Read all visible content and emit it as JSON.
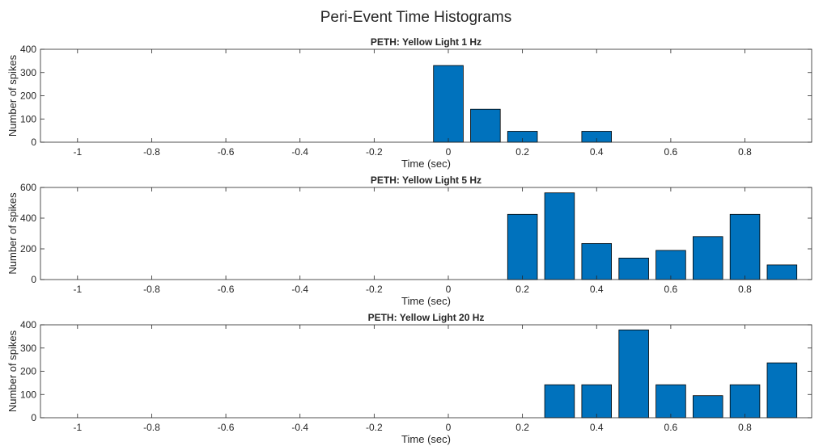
{
  "figure": {
    "title": "Peri-Event Time Histograms"
  },
  "chart_data": [
    {
      "type": "bar",
      "title": "PETH: Yellow Light 1 Hz",
      "xlabel": "Time (sec)",
      "ylabel": "Number of spikes",
      "xlim": [
        -1.1,
        0.98
      ],
      "ylim": [
        0,
        400
      ],
      "xticks": [
        -1,
        -0.8,
        -0.6,
        -0.4,
        -0.2,
        0,
        0.2,
        0.4,
        0.6,
        0.8
      ],
      "xtick_labels": [
        "-1",
        "-0.8",
        "-0.6",
        "-0.4",
        "-0.2",
        "0",
        "0.2",
        "0.4",
        "0.6",
        "0.8"
      ],
      "yticks": [
        0,
        100,
        200,
        300,
        400
      ],
      "ytick_labels": [
        "0",
        "100",
        "200",
        "300",
        "400"
      ],
      "bar_width": 0.08,
      "x": [
        0,
        0.1,
        0.2,
        0.4
      ],
      "values": [
        330,
        142,
        47,
        47
      ],
      "bar_color": "#0072BD",
      "grid": false
    },
    {
      "type": "bar",
      "title": "PETH: Yellow Light 5 Hz",
      "xlabel": "Time (sec)",
      "ylabel": "Number of spikes",
      "xlim": [
        -1.1,
        0.98
      ],
      "ylim": [
        0,
        600
      ],
      "xticks": [
        -1,
        -0.8,
        -0.6,
        -0.4,
        -0.2,
        0,
        0.2,
        0.4,
        0.6,
        0.8
      ],
      "xtick_labels": [
        "-1",
        "-0.8",
        "-0.6",
        "-0.4",
        "-0.2",
        "0",
        "0.2",
        "0.4",
        "0.6",
        "0.8"
      ],
      "yticks": [
        0,
        200,
        400,
        600
      ],
      "ytick_labels": [
        "0",
        "200",
        "400",
        "600"
      ],
      "bar_width": 0.08,
      "x": [
        0.2,
        0.3,
        0.4,
        0.5,
        0.6,
        0.7,
        0.8,
        0.9
      ],
      "values": [
        425,
        565,
        235,
        140,
        190,
        280,
        425,
        95
      ],
      "bar_color": "#0072BD",
      "grid": false
    },
    {
      "type": "bar",
      "title": "PETH: Yellow Light 20 Hz",
      "xlabel": "Time (sec)",
      "ylabel": "Number of spikes",
      "xlim": [
        -1.1,
        0.98
      ],
      "ylim": [
        0,
        400
      ],
      "xticks": [
        -1,
        -0.8,
        -0.6,
        -0.4,
        -0.2,
        0,
        0.2,
        0.4,
        0.6,
        0.8
      ],
      "xtick_labels": [
        "-1",
        "-0.8",
        "-0.6",
        "-0.4",
        "-0.2",
        "0",
        "0.2",
        "0.4",
        "0.6",
        "0.8"
      ],
      "yticks": [
        0,
        100,
        200,
        300,
        400
      ],
      "ytick_labels": [
        "0",
        "100",
        "200",
        "300",
        "400"
      ],
      "bar_width": 0.08,
      "x": [
        0.3,
        0.4,
        0.5,
        0.6,
        0.7,
        0.8,
        0.9
      ],
      "values": [
        142,
        142,
        378,
        142,
        95,
        142,
        236
      ],
      "bar_color": "#0072BD",
      "grid": false
    }
  ]
}
